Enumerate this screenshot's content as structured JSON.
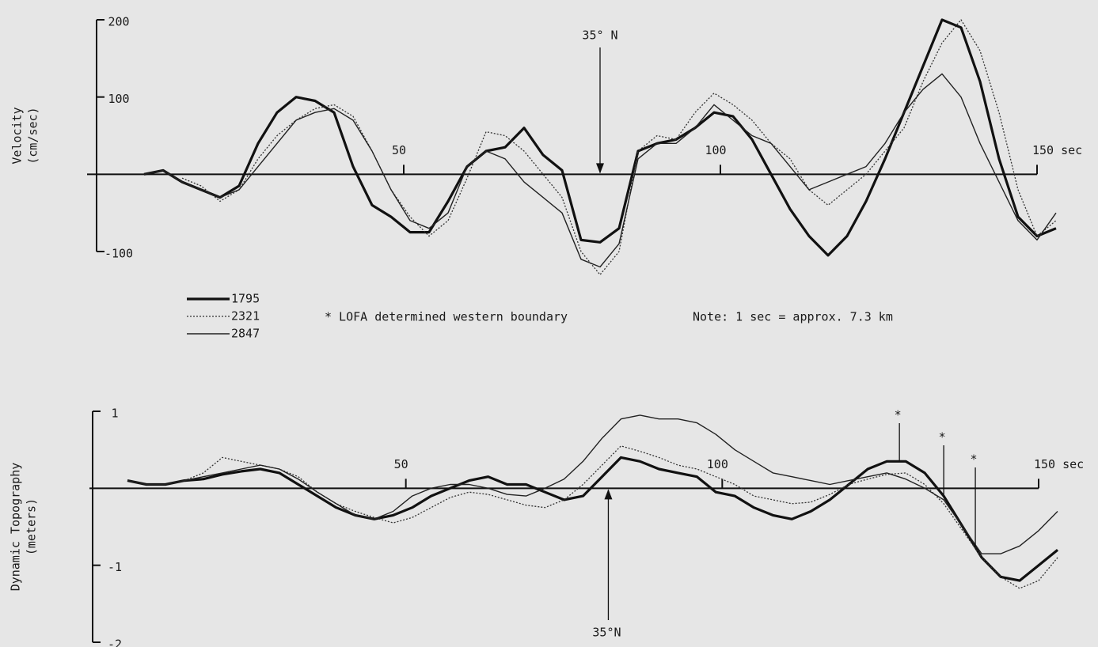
{
  "chart_data": [
    {
      "type": "line",
      "y_label": [
        "Velocity",
        "(cm/sec)"
      ],
      "x": [
        9,
        12,
        15,
        18,
        21,
        24,
        27,
        30,
        33,
        36,
        39,
        42,
        45,
        48,
        51,
        54,
        57,
        60,
        63,
        66,
        69,
        72,
        75,
        78,
        81,
        84,
        87,
        90,
        93,
        96,
        99,
        102,
        105,
        108,
        111,
        114,
        117,
        120,
        123,
        126,
        129,
        132,
        135,
        138,
        141,
        144,
        147,
        150,
        153
      ],
      "xlim": [
        0,
        150
      ],
      "xticks": [
        50,
        100,
        {
          "value": 150,
          "label": "150 sec"
        }
      ],
      "ylim": [
        -100,
        200
      ],
      "yticks": [
        {
          "value": -100,
          "label": "-100"
        },
        100,
        200
      ],
      "series": [
        {
          "name": "1795",
          "color": "#111111",
          "width": 3.2,
          "style": "solid",
          "values": [
            0,
            5,
            -10,
            -20,
            -30,
            -15,
            40,
            80,
            100,
            95,
            80,
            10,
            -40,
            -55,
            -75,
            -75,
            -35,
            10,
            30,
            35,
            60,
            25,
            5,
            -85,
            -88,
            -70,
            30,
            40,
            45,
            60,
            80,
            75,
            45,
            0,
            -45,
            -80,
            -105,
            -80,
            -35,
            20,
            80,
            140,
            200,
            190,
            120,
            20,
            -55,
            -80,
            -70
          ]
        },
        {
          "name": "2321",
          "color": "#333333",
          "width": 1.3,
          "style": "dotted",
          "values": [
            null,
            null,
            -5,
            -15,
            -35,
            -20,
            20,
            50,
            70,
            85,
            90,
            75,
            30,
            -20,
            -55,
            -80,
            -60,
            -5,
            55,
            50,
            30,
            0,
            -30,
            -100,
            -130,
            -100,
            30,
            50,
            45,
            80,
            105,
            90,
            70,
            40,
            20,
            -20,
            -40,
            -20,
            0,
            30,
            60,
            120,
            170,
            200,
            160,
            80,
            -20,
            -80,
            -60
          ]
        },
        {
          "name": "2847",
          "color": "#222222",
          "width": 1.4,
          "style": "solid",
          "values": [
            0,
            5,
            -10,
            -20,
            -30,
            -20,
            10,
            40,
            70,
            80,
            85,
            70,
            30,
            -20,
            -60,
            -70,
            -50,
            10,
            30,
            20,
            -10,
            -30,
            -50,
            -110,
            -120,
            -90,
            20,
            40,
            40,
            60,
            90,
            70,
            50,
            40,
            10,
            -20,
            -10,
            0,
            10,
            40,
            80,
            110,
            130,
            100,
            40,
            -10,
            -60,
            -85,
            -50
          ]
        }
      ],
      "annotation": {
        "text": "35° N",
        "x": 81
      },
      "notes": [
        "* LOFA determined western boundary",
        "Note: 1 sec = approx. 7.3 km"
      ]
    },
    {
      "type": "line",
      "y_label": [
        "Dynamic Topography",
        "(meters)"
      ],
      "x": [
        6,
        9,
        12,
        15,
        18,
        21,
        24,
        27,
        30,
        33,
        36,
        39,
        42,
        45,
        48,
        51,
        54,
        57,
        60,
        63,
        66,
        69,
        72,
        75,
        78,
        81,
        84,
        87,
        90,
        93,
        96,
        99,
        102,
        105,
        108,
        111,
        114,
        117,
        120,
        123,
        126,
        129,
        132,
        135,
        138,
        141,
        144,
        147,
        150,
        153
      ],
      "xlim": [
        0,
        150
      ],
      "xticks": [
        50,
        100,
        {
          "value": 150,
          "label": "150 sec"
        }
      ],
      "ylim": [
        -2,
        1
      ],
      "yticks": [
        -2,
        -1,
        1
      ],
      "series": [
        {
          "color": "#111111",
          "width": 3.2,
          "style": "solid",
          "values": [
            0.1,
            0.05,
            0.05,
            0.1,
            0.12,
            0.18,
            0.22,
            0.25,
            0.2,
            0.05,
            -0.1,
            -0.25,
            -0.35,
            -0.4,
            -0.35,
            -0.25,
            -0.1,
            0,
            0.1,
            0.15,
            0.05,
            0.05,
            -0.05,
            -0.15,
            -0.1,
            0.15,
            0.4,
            0.35,
            0.25,
            0.2,
            0.15,
            -0.05,
            -0.1,
            -0.25,
            -0.35,
            -0.4,
            -0.3,
            -0.15,
            0.05,
            0.25,
            0.35,
            0.35,
            0.2,
            -0.1,
            -0.5,
            -0.9,
            -1.15,
            -1.2,
            -1.0,
            -0.8
          ]
        },
        {
          "color": "#333333",
          "width": 1.3,
          "style": "dotted",
          "values": [
            null,
            null,
            null,
            0.1,
            0.2,
            0.4,
            0.35,
            0.3,
            0.25,
            0.15,
            -0.05,
            -0.2,
            -0.3,
            -0.38,
            -0.45,
            -0.38,
            -0.25,
            -0.12,
            -0.05,
            -0.08,
            -0.15,
            -0.22,
            -0.25,
            -0.15,
            0.05,
            0.3,
            0.55,
            0.48,
            0.4,
            0.3,
            0.25,
            0.15,
            0.05,
            -0.1,
            -0.15,
            -0.2,
            -0.18,
            -0.08,
            0.05,
            0.12,
            0.18,
            0.2,
            0.05,
            -0.2,
            -0.55,
            -0.9,
            -1.15,
            -1.3,
            -1.2,
            -0.9
          ]
        },
        {
          "color": "#222222",
          "width": 1.4,
          "style": "solid",
          "values": [
            0.1,
            0.05,
            0.05,
            0.1,
            0.15,
            0.2,
            0.25,
            0.3,
            0.25,
            0.12,
            -0.05,
            -0.2,
            -0.35,
            -0.4,
            -0.3,
            -0.1,
            0,
            0.05,
            0.05,
            0,
            -0.08,
            -0.1,
            0,
            0.12,
            0.35,
            0.65,
            0.9,
            0.95,
            0.9,
            0.9,
            0.85,
            0.7,
            0.5,
            0.35,
            0.2,
            0.15,
            0.1,
            0.05,
            0.1,
            0.15,
            0.2,
            0.12,
            0,
            -0.15,
            -0.5,
            -0.85,
            -0.85,
            -0.75,
            -0.55,
            -0.3
          ]
        }
      ],
      "annotation": {
        "text": "35°N",
        "x": 82
      },
      "markers": [
        {
          "label": "*",
          "x": 128
        },
        {
          "label": "*",
          "x": 135
        },
        {
          "label": "*",
          "x": 140
        }
      ]
    }
  ]
}
